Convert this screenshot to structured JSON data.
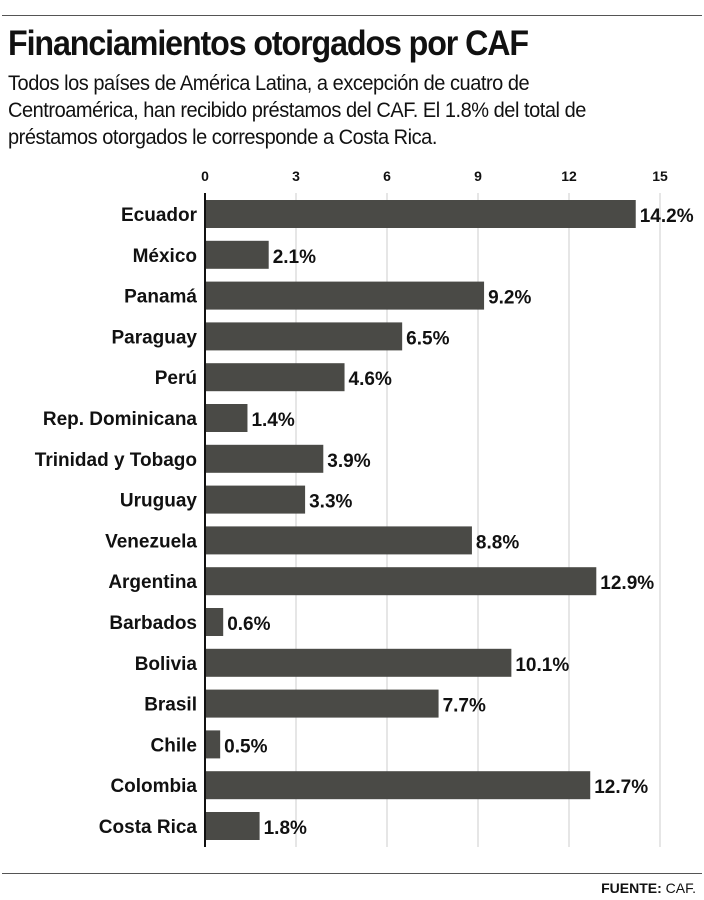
{
  "title": "Financiamientos otorgados por CAF",
  "subtitle": "Todos los países de América Latina, a excepción de cuatro de Centroamérica, han recibido préstamos del CAF. El 1.8% del total de préstamos otorgados le corresponde a Costa Rica.",
  "source_label": "FUENTE:",
  "source_value": "CAF.",
  "colors": {
    "bar": "#4a4a46",
    "grid": "#cccccc",
    "axis": "#111111"
  },
  "chart_data": {
    "type": "bar",
    "orientation": "horizontal",
    "categories": [
      "Ecuador",
      "México",
      "Panamá",
      "Paraguay",
      "Perú",
      "Rep. Dominicana",
      "Trinidad y Tobago",
      "Uruguay",
      "Venezuela",
      "Argentina",
      "Barbados",
      "Bolivia",
      "Brasil",
      "Chile",
      "Colombia",
      "Costa Rica"
    ],
    "values": [
      14.2,
      2.1,
      9.2,
      6.5,
      4.6,
      1.4,
      3.9,
      3.3,
      8.8,
      12.9,
      0.6,
      10.1,
      7.7,
      0.5,
      12.7,
      1.8
    ],
    "data_labels": [
      "14.2%",
      "2.1%",
      "9.2%",
      "6.5%",
      "4.6%",
      "1.4%",
      "3.9%",
      "3.3%",
      "8.8%",
      "12.9%",
      "0.6%",
      "10.1%",
      "7.7%",
      "0.5%",
      "12.7%",
      "1.8%"
    ],
    "xlim": [
      0,
      15
    ],
    "xticks": [
      "0",
      "3",
      "6",
      "9",
      "12",
      "15"
    ],
    "grid": true,
    "axis_position": "top"
  }
}
